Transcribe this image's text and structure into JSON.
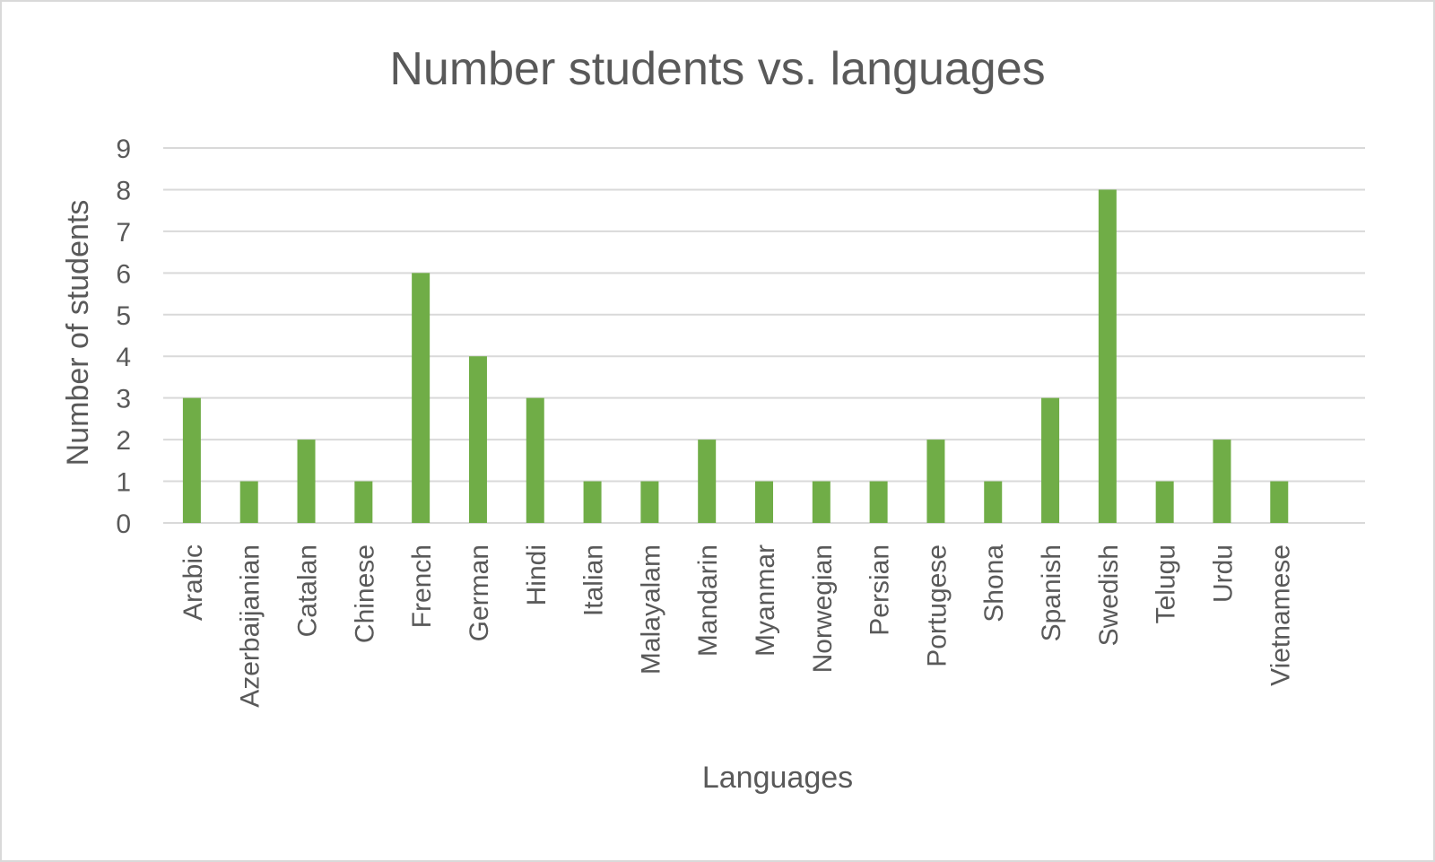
{
  "chart_data": {
    "type": "bar",
    "title": "Number students vs. languages",
    "xlabel": "Languages",
    "ylabel": "Number of students",
    "ylim": [
      0,
      9
    ],
    "yticks": [
      0,
      1,
      2,
      3,
      4,
      5,
      6,
      7,
      8,
      9
    ],
    "grid": true,
    "legend": "none",
    "bar_color": "#70ad47",
    "categories": [
      "Arabic",
      "Azerbaijanian",
      "Catalan",
      "Chinese",
      "French",
      "German",
      "Hindi",
      "Italian",
      "Malayalam",
      "Mandarin",
      "Myanmar",
      "Norwegian",
      "Persian",
      "Portugese",
      "Shona",
      "Spanish",
      "Swedish",
      "Telugu",
      "Urdu",
      "Vietnamese"
    ],
    "values": [
      3,
      1,
      2,
      1,
      6,
      4,
      3,
      1,
      1,
      2,
      1,
      1,
      1,
      2,
      1,
      3,
      8,
      1,
      2,
      1
    ]
  }
}
